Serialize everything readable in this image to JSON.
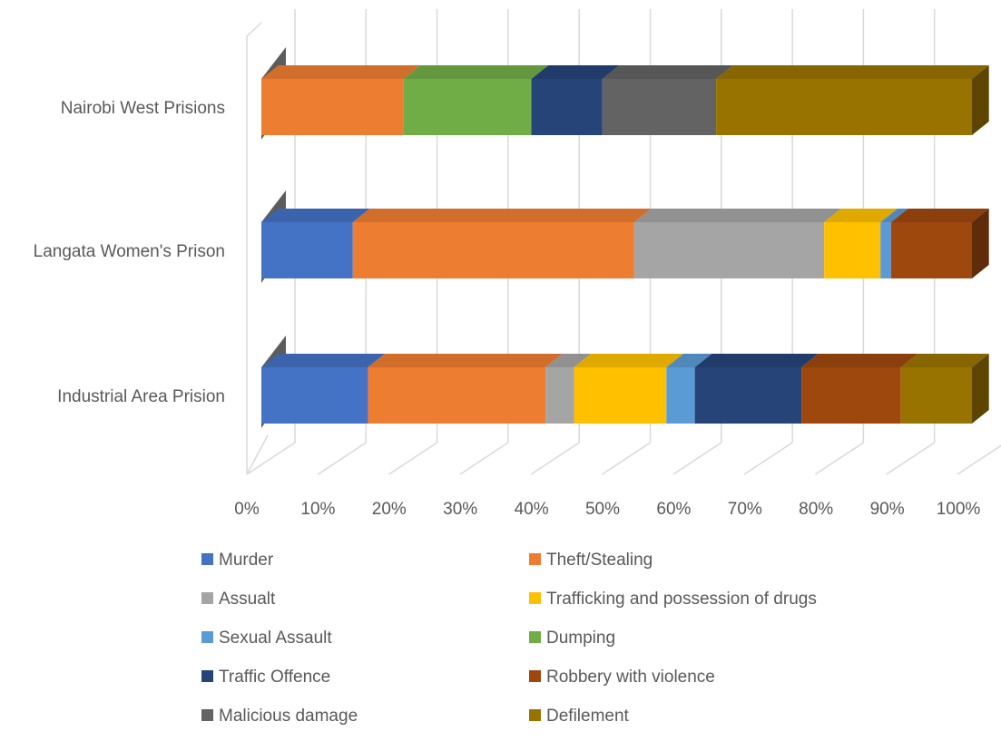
{
  "chart_data": {
    "type": "bar",
    "orientation": "horizontal",
    "stacking": "percent",
    "style": "3d",
    "categories": [
      "Nairobi West Prisions",
      "Langata Women's Prison",
      "Industrial Area Prision"
    ],
    "series": [
      {
        "name": "Murder",
        "color": "#4472C4",
        "values": [
          0,
          13,
          15
        ]
      },
      {
        "name": "Theft/Stealing",
        "color": "#ED7D31",
        "values": [
          20,
          40,
          25
        ]
      },
      {
        "name": "Assualt",
        "color": "#A5A5A5",
        "values": [
          0,
          27,
          4
        ]
      },
      {
        "name": "Trafficking and possession of drugs",
        "color": "#FFC000",
        "values": [
          0,
          8,
          13
        ]
      },
      {
        "name": "Sexual Assault",
        "color": "#5B9BD5",
        "values": [
          0,
          1.5,
          4
        ]
      },
      {
        "name": "Dumping",
        "color": "#70AD47",
        "values": [
          18,
          0,
          0
        ]
      },
      {
        "name": "Traffic Offence",
        "color": "#264478",
        "values": [
          10,
          0,
          15
        ]
      },
      {
        "name": "Robbery with violence",
        "color": "#9E480E",
        "values": [
          0,
          11.5,
          14
        ]
      },
      {
        "name": "Malicious damage",
        "color": "#636363",
        "values": [
          16,
          0,
          0
        ]
      },
      {
        "name": "Defilement",
        "color": "#997300",
        "values": [
          36,
          0,
          10
        ]
      }
    ],
    "x_ticks": [
      "0%",
      "10%",
      "20%",
      "30%",
      "40%",
      "50%",
      "60%",
      "70%",
      "80%",
      "90%",
      "100%"
    ],
    "xlim": [
      0,
      100
    ],
    "grid": true,
    "legend_position": "bottom"
  }
}
